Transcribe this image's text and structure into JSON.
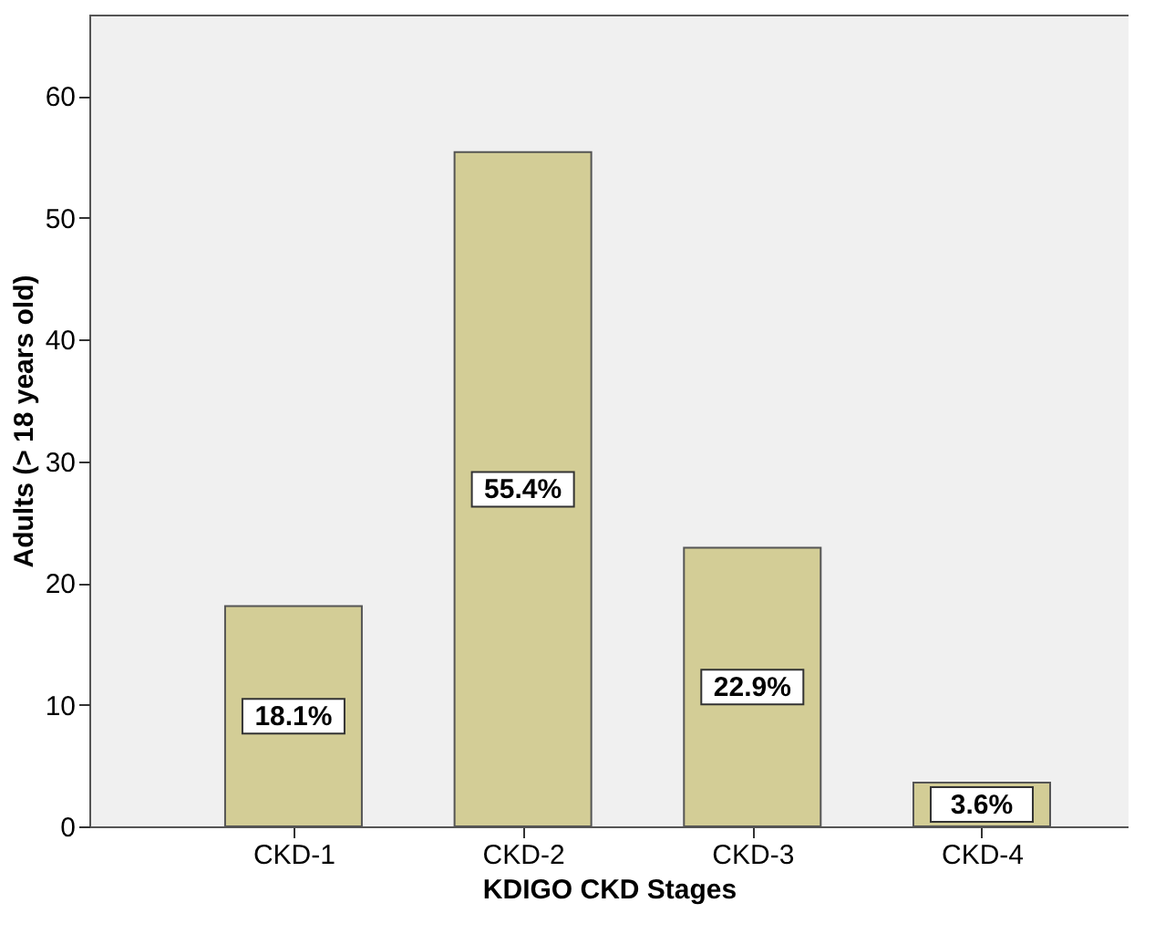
{
  "chart_data": {
    "type": "bar",
    "xlabel": "KDIGO CKD Stages",
    "ylabel": "Adults (> 18 years old)",
    "categories": [
      "CKD-1",
      "CKD-2",
      "CKD-3",
      "CKD-4"
    ],
    "series": [
      {
        "color": "#d3cd96",
        "values": [
          18.1,
          55.4,
          22.9,
          3.6
        ]
      }
    ],
    "value_labels": [
      "18.1%",
      "55.4%",
      "22.9%",
      "3.6%"
    ],
    "ylim": [
      0,
      66.7
    ],
    "yticks": [
      0,
      10,
      20,
      30,
      40,
      50,
      60
    ],
    "grid": false
  }
}
